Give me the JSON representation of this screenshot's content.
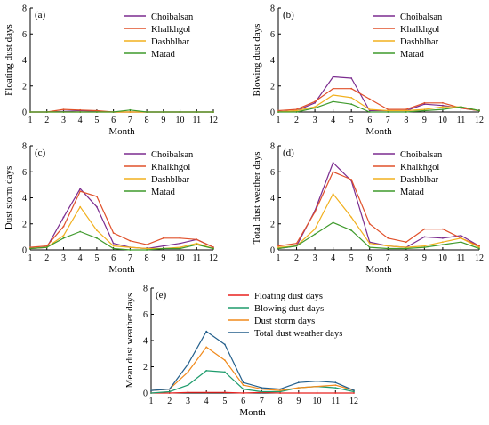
{
  "chart_data": [
    {
      "type": "line",
      "panel": "(a)",
      "xlabel": "Month",
      "ylabel": "Floating dust days",
      "x": [
        1,
        2,
        3,
        4,
        5,
        6,
        7,
        8,
        9,
        10,
        11,
        12
      ],
      "xlim": [
        1,
        12
      ],
      "ylim": [
        0,
        8
      ],
      "yticks": [
        0,
        2,
        4,
        6,
        8
      ],
      "legend_position": "top-right",
      "series": [
        {
          "name": "Choibalsan",
          "color": "#7b2c8f",
          "values": [
            0,
            0,
            0.05,
            0.1,
            0.05,
            0,
            0,
            0,
            0,
            0,
            0,
            0
          ]
        },
        {
          "name": "Khalkhgol",
          "color": "#e0502a",
          "values": [
            0,
            0,
            0.2,
            0.15,
            0.1,
            0,
            0,
            0,
            0,
            0,
            0,
            0
          ]
        },
        {
          "name": "Dashblbar",
          "color": "#f2b01e",
          "values": [
            0,
            0,
            0,
            0,
            0,
            0,
            0,
            0,
            0,
            0,
            0,
            0
          ]
        },
        {
          "name": "Matad",
          "color": "#3f9a2c",
          "values": [
            0,
            0,
            0,
            0,
            0,
            0,
            0.15,
            0,
            0,
            0,
            0,
            0
          ]
        }
      ]
    },
    {
      "type": "line",
      "panel": "(b)",
      "xlabel": "Month",
      "ylabel": "Blowing dust days",
      "x": [
        1,
        2,
        3,
        4,
        5,
        6,
        7,
        8,
        9,
        10,
        11,
        12
      ],
      "xlim": [
        1,
        12
      ],
      "ylim": [
        0,
        8
      ],
      "yticks": [
        0,
        2,
        4,
        6,
        8
      ],
      "legend_position": "top-right",
      "series": [
        {
          "name": "Choibalsan",
          "color": "#7b2c8f",
          "values": [
            0,
            0.1,
            0.7,
            2.7,
            2.6,
            0.1,
            0.1,
            0.1,
            0.6,
            0.5,
            0.3,
            0.1
          ]
        },
        {
          "name": "Khalkhgol",
          "color": "#e0502a",
          "values": [
            0.1,
            0.2,
            0.8,
            1.8,
            1.8,
            1.0,
            0.2,
            0.2,
            0.7,
            0.7,
            0.3,
            0.1
          ]
        },
        {
          "name": "Dashblbar",
          "color": "#f2b01e",
          "values": [
            0,
            0.1,
            0.4,
            1.3,
            1.1,
            0.2,
            0.1,
            0.1,
            0.2,
            0.4,
            0.4,
            0.1
          ]
        },
        {
          "name": "Matad",
          "color": "#3f9a2c",
          "values": [
            0,
            0,
            0.3,
            0.8,
            0.6,
            0,
            0,
            0,
            0.1,
            0.2,
            0.4,
            0.1
          ]
        }
      ]
    },
    {
      "type": "line",
      "panel": "(c)",
      "xlabel": "Month",
      "ylabel": "Dust storm days",
      "x": [
        1,
        2,
        3,
        4,
        5,
        6,
        7,
        8,
        9,
        10,
        11,
        12
      ],
      "xlim": [
        1,
        12
      ],
      "ylim": [
        0,
        8
      ],
      "yticks": [
        0,
        2,
        4,
        6,
        8
      ],
      "legend_position": "top-right",
      "series": [
        {
          "name": "Choibalsan",
          "color": "#7b2c8f",
          "values": [
            0.1,
            0.2,
            2.5,
            4.7,
            3.3,
            0.5,
            0.2,
            0.1,
            0.3,
            0.5,
            0.8,
            0.2
          ]
        },
        {
          "name": "Khalkhgol",
          "color": "#e0502a",
          "values": [
            0.2,
            0.3,
            1.8,
            4.5,
            4.1,
            1.3,
            0.7,
            0.4,
            0.9,
            0.9,
            0.8,
            0.2
          ]
        },
        {
          "name": "Dashblbar",
          "color": "#f2b01e",
          "values": [
            0.1,
            0.2,
            1.1,
            3.3,
            1.5,
            0.3,
            0.2,
            0.1,
            0.1,
            0.2,
            0.5,
            0.1
          ]
        },
        {
          "name": "Matad",
          "color": "#3f9a2c",
          "values": [
            0.1,
            0.2,
            0.9,
            1.4,
            0.9,
            0.1,
            0,
            0,
            0.1,
            0.1,
            0.4,
            0.1
          ]
        }
      ]
    },
    {
      "type": "line",
      "panel": "(d)",
      "xlabel": "Month",
      "ylabel": "Total dust weather days",
      "x": [
        1,
        2,
        3,
        4,
        5,
        6,
        7,
        8,
        9,
        10,
        11,
        12
      ],
      "xlim": [
        1,
        12
      ],
      "ylim": [
        0,
        8
      ],
      "yticks": [
        0,
        2,
        4,
        6,
        8
      ],
      "legend_position": "top-right",
      "series": [
        {
          "name": "Choibalsan",
          "color": "#7b2c8f",
          "values": [
            0.1,
            0.3,
            3.0,
            6.7,
            5.3,
            0.6,
            0.3,
            0.2,
            1.0,
            0.9,
            1.1,
            0.3
          ]
        },
        {
          "name": "Khalkhgol",
          "color": "#e0502a",
          "values": [
            0.3,
            0.5,
            2.9,
            6.0,
            5.4,
            2.0,
            0.9,
            0.6,
            1.6,
            1.6,
            0.9,
            0.3
          ]
        },
        {
          "name": "Dashblbar",
          "color": "#f2b01e",
          "values": [
            0.2,
            0.3,
            1.6,
            4.3,
            2.5,
            0.5,
            0.3,
            0.2,
            0.3,
            0.6,
            0.9,
            0.2
          ]
        },
        {
          "name": "Matad",
          "color": "#3f9a2c",
          "values": [
            0.1,
            0.3,
            1.2,
            2.1,
            1.5,
            0.2,
            0.1,
            0.1,
            0.2,
            0.4,
            0.6,
            0.1
          ]
        }
      ]
    },
    {
      "type": "line",
      "panel": "(e)",
      "xlabel": "Month",
      "ylabel": "Mean dust weather days",
      "x": [
        1,
        2,
        3,
        4,
        5,
        6,
        7,
        8,
        9,
        10,
        11,
        12
      ],
      "xlim": [
        1,
        12
      ],
      "ylim": [
        0,
        8
      ],
      "yticks": [
        0,
        2,
        4,
        6,
        8
      ],
      "legend_position": "top-right",
      "series": [
        {
          "name": "Floating dust days",
          "color": "#e8201e",
          "values": [
            0,
            0,
            0.05,
            0.05,
            0.05,
            0,
            0.05,
            0,
            0,
            0,
            0,
            0
          ]
        },
        {
          "name": "Blowing dust days",
          "color": "#1e9c6c",
          "values": [
            0,
            0.1,
            0.6,
            1.7,
            1.6,
            0.3,
            0.1,
            0.1,
            0.4,
            0.5,
            0.4,
            0.1
          ]
        },
        {
          "name": "Dust storm days",
          "color": "#f08a1c",
          "values": [
            0.2,
            0.3,
            1.6,
            3.5,
            2.5,
            0.6,
            0.3,
            0.2,
            0.4,
            0.5,
            0.6,
            0.2
          ]
        },
        {
          "name": "Total dust weather days",
          "color": "#235f8c",
          "values": [
            0.2,
            0.3,
            2.2,
            4.7,
            3.7,
            0.8,
            0.4,
            0.3,
            0.8,
            0.9,
            0.8,
            0.2
          ]
        }
      ]
    }
  ]
}
